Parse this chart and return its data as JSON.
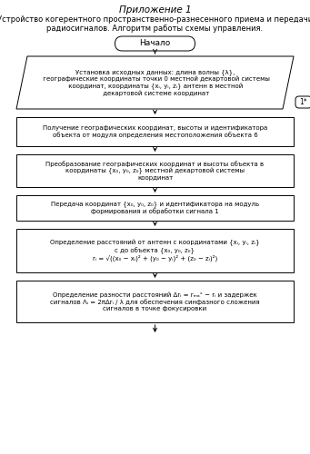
{
  "title_top": "Приложение 1",
  "title_main_line1": "Устройство когерентного пространственно-разнесенного приема и передачи",
  "title_main_line2": "радиосигналов. Алгоритм работы схемы управления.",
  "start_label": "Начало",
  "parallelogram_text": "Установка исходных данных: длина волны {λ},\n географические координаты точки 0 местной декартовой системы\n координат, координаты {xᵢ, yᵢ, zᵢ} антенн в местной\n декартовой системе координат",
  "connector_label": "1*",
  "box1_text": "Получение географических координат, высоты и идентификатора\nобъекта от модуля определения местоположения объекта 6",
  "box2_text": "Преобразование географических координат и высоты объекта в\nкоординаты {x₀, y₀, z₀} местной декартовой системы\nкоординат",
  "box3_text": "Передача координат {x₀, y₀, z₀} и идентификатора на модуль\nформирования и обработки сигнала 1",
  "box4_text": "Определение расстояний от антенн с координатами {xᵢ, yᵢ, zᵢ}\nс до объекта {x₀, y₀, z₀}\nrᵢ = √((x₀ − xᵢ)² + (y₀ − yᵢ)² + (z₀ − zᵢ)²)",
  "box5_text": "Определение разности расстояний Δrᵢ = rₘₐˣ − rᵢ и задержек\nсигналов Λᵢ = 2πΔrᵢ / λ для обеспечения синфазного сложения\nсигналов в точке фокусировки",
  "bg_color": "#ffffff",
  "box_edge_color": "#000000",
  "text_color": "#000000",
  "arrow_color": "#000000"
}
